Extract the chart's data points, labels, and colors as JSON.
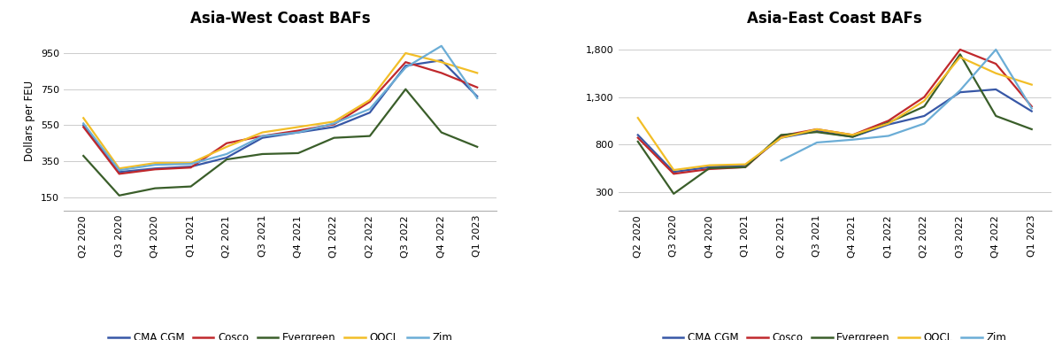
{
  "categories": [
    "Q2 2020",
    "Q3 2020",
    "Q4 2020",
    "Q1 2021",
    "Q2 2021",
    "Q3 2021",
    "Q4 2021",
    "Q1 2022",
    "Q2 2022",
    "Q3 2022",
    "Q4 2022",
    "Q1 2023"
  ],
  "title_left": "Asia-West Coast BAFs",
  "title_right": "Asia-East Coast BAFs",
  "ylabel": "Dollars per FEU",
  "left": {
    "CMA CGM": [
      550,
      290,
      310,
      320,
      370,
      480,
      510,
      540,
      620,
      880,
      910,
      710
    ],
    "Cosco": [
      540,
      280,
      305,
      315,
      450,
      490,
      520,
      555,
      680,
      900,
      840,
      760
    ],
    "Evergreen": [
      380,
      160,
      200,
      210,
      360,
      390,
      395,
      480,
      490,
      750,
      510,
      430
    ],
    "OOCL": [
      590,
      310,
      340,
      340,
      430,
      510,
      540,
      570,
      690,
      950,
      900,
      840
    ],
    "Zim": [
      560,
      300,
      330,
      335,
      390,
      490,
      510,
      560,
      640,
      870,
      990,
      700
    ]
  },
  "right": {
    "CMA CGM": [
      900,
      510,
      560,
      580,
      870,
      940,
      880,
      1010,
      1100,
      1350,
      1380,
      1150
    ],
    "Cosco": [
      870,
      490,
      540,
      560,
      890,
      960,
      900,
      1050,
      1300,
      1800,
      1650,
      1200
    ],
    "Evergreen": [
      830,
      280,
      550,
      560,
      900,
      930,
      880,
      1030,
      1200,
      1750,
      1100,
      960
    ],
    "OOCL": [
      1080,
      530,
      580,
      590,
      870,
      960,
      900,
      1020,
      1260,
      1720,
      1550,
      1430
    ],
    "Zim": [
      null,
      null,
      null,
      null,
      630,
      820,
      850,
      890,
      1020,
      1370,
      1800,
      1180
    ]
  },
  "colors": {
    "CMA CGM": "#3757A6",
    "Cosco": "#C0282C",
    "Evergreen": "#3A5E2A",
    "OOCL": "#F2BE27",
    "Zim": "#6BADD6"
  },
  "carriers": [
    "CMA CGM",
    "Cosco",
    "Evergreen",
    "OOCL",
    "Zim"
  ],
  "left_yticks": [
    150,
    350,
    550,
    750,
    950
  ],
  "right_yticks": [
    300,
    800,
    1300,
    1800
  ],
  "left_ylim": [
    75,
    1075
  ],
  "right_ylim": [
    100,
    2000
  ],
  "figsize": [
    12.0,
    3.84
  ],
  "dpi": 100
}
